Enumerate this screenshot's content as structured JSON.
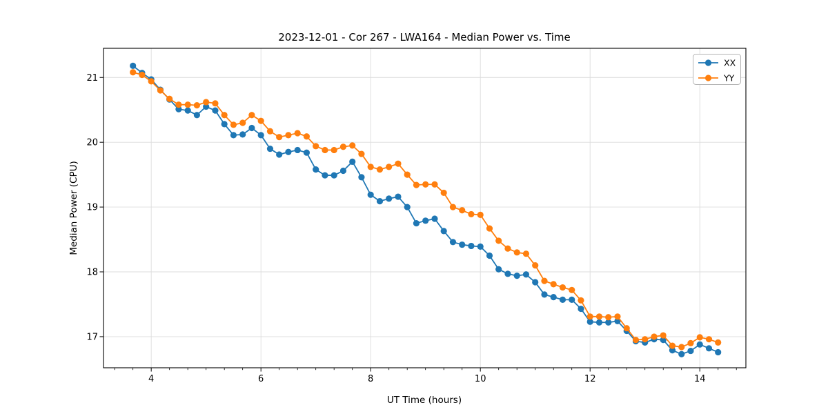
{
  "title": "2023-12-01 - Cor 267 - LWA164 - Median Power vs. Time",
  "colors": {
    "series_xx": "#1f77b4",
    "series_yy": "#ff7f0e",
    "grid": "#dcdcdc",
    "spine": "#000000",
    "legend_border": "#b3b3b3",
    "background": "#ffffff"
  },
  "legend": {
    "entries": [
      "XX",
      "YY"
    ],
    "position": "upper right"
  },
  "chart_data": {
    "type": "line",
    "title": "2023-12-01 - Cor 267 - LWA164 - Median Power vs. Time",
    "xlabel": "UT Time (hours)",
    "ylabel": "Median Power (CPU)",
    "xlim": [
      3.13,
      14.84
    ],
    "ylim": [
      16.52,
      21.45
    ],
    "xticks_major": [
      4,
      6,
      8,
      10,
      12,
      14
    ],
    "xtick_labels": [
      "4",
      "6",
      "8",
      "10",
      "12",
      "14"
    ],
    "xtick_minor_step": 0.333333,
    "yticks": [
      17,
      18,
      19,
      20,
      21
    ],
    "ytick_labels": [
      "17",
      "18",
      "19",
      "20",
      "21"
    ],
    "grid": true,
    "legend_position": "upper right",
    "x": [
      3.667,
      3.833,
      4.0,
      4.167,
      4.333,
      4.5,
      4.667,
      4.833,
      5.0,
      5.167,
      5.333,
      5.5,
      5.667,
      5.833,
      6.0,
      6.167,
      6.333,
      6.5,
      6.667,
      6.833,
      7.0,
      7.167,
      7.333,
      7.5,
      7.667,
      7.833,
      8.0,
      8.167,
      8.333,
      8.5,
      8.667,
      8.833,
      9.0,
      9.167,
      9.333,
      9.5,
      9.667,
      9.833,
      10.0,
      10.167,
      10.333,
      10.5,
      10.667,
      10.833,
      11.0,
      11.167,
      11.333,
      11.5,
      11.667,
      11.833,
      12.0,
      12.167,
      12.333,
      12.5,
      12.667,
      12.833,
      13.0,
      13.167,
      13.333,
      13.5,
      13.667,
      13.833,
      14.0,
      14.167,
      14.333
    ],
    "series": [
      {
        "name": "XX",
        "color": "#1f77b4",
        "values": [
          21.18,
          21.07,
          20.97,
          20.81,
          20.66,
          20.51,
          20.49,
          20.42,
          20.55,
          20.49,
          20.28,
          20.11,
          20.12,
          20.22,
          20.11,
          19.9,
          19.81,
          19.85,
          19.88,
          19.84,
          19.58,
          19.49,
          19.49,
          19.56,
          19.7,
          19.46,
          19.19,
          19.09,
          19.13,
          19.16,
          19.0,
          18.75,
          18.79,
          18.82,
          18.63,
          18.46,
          18.42,
          18.4,
          18.39,
          18.25,
          18.04,
          17.97,
          17.94,
          17.96,
          17.84,
          17.65,
          17.61,
          17.57,
          17.57,
          17.43,
          17.23,
          17.22,
          17.22,
          17.24,
          17.09,
          16.93,
          16.91,
          16.96,
          16.95,
          16.79,
          16.73,
          16.78,
          16.88,
          16.82,
          16.76
        ]
      },
      {
        "name": "YY",
        "color": "#ff7f0e",
        "values": [
          21.08,
          21.04,
          20.94,
          20.8,
          20.67,
          20.58,
          20.58,
          20.57,
          20.62,
          20.6,
          20.42,
          20.27,
          20.3,
          20.42,
          20.33,
          20.17,
          20.08,
          20.11,
          20.14,
          20.09,
          19.94,
          19.88,
          19.88,
          19.93,
          19.95,
          19.82,
          19.62,
          19.58,
          19.62,
          19.67,
          19.5,
          19.34,
          19.35,
          19.35,
          19.22,
          19.0,
          18.95,
          18.89,
          18.88,
          18.67,
          18.48,
          18.36,
          18.3,
          18.28,
          18.1,
          17.86,
          17.81,
          17.76,
          17.72,
          17.56,
          17.31,
          17.31,
          17.3,
          17.31,
          17.13,
          16.95,
          16.96,
          17.0,
          17.02,
          16.86,
          16.84,
          16.9,
          16.99,
          16.96,
          16.91
        ]
      }
    ]
  }
}
